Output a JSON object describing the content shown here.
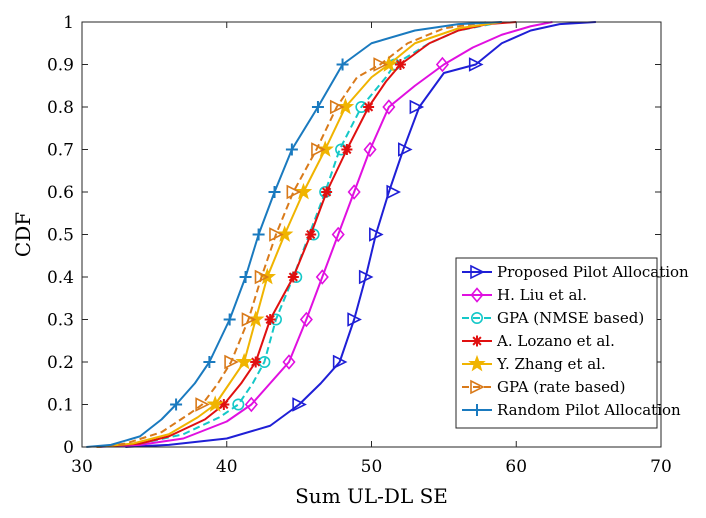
{
  "chart_data": {
    "type": "line",
    "title": "",
    "xlabel": "Sum UL-DL SE",
    "ylabel": "CDF",
    "xlim": [
      30,
      70
    ],
    "ylim": [
      0,
      1
    ],
    "xticks": [
      30,
      40,
      50,
      60,
      70
    ],
    "yticks": [
      0,
      0.1,
      0.2,
      0.3,
      0.4,
      0.5,
      0.6,
      0.7,
      0.8,
      0.9,
      1
    ],
    "xtick_labels": [
      "30",
      "40",
      "50",
      "60",
      "70"
    ],
    "ytick_labels": [
      "0",
      "0.1",
      "0.2",
      "0.3",
      "0.4",
      "0.5",
      "0.6",
      "0.7",
      "0.8",
      "0.9",
      "1"
    ],
    "grid": false,
    "legend_position": "bottom-right",
    "series": [
      {
        "name": "Proposed Pilot Allocation",
        "color": "#1f1fd6",
        "line_style": "solid",
        "marker": "triangle-right",
        "curve": [
          [
            33,
            0
          ],
          [
            36,
            0.005
          ],
          [
            40,
            0.02
          ],
          [
            43,
            0.05
          ],
          [
            45,
            0.1
          ],
          [
            46.5,
            0.15
          ],
          [
            47.8,
            0.2
          ],
          [
            48.8,
            0.3
          ],
          [
            49.6,
            0.4
          ],
          [
            50.3,
            0.5
          ],
          [
            51.2,
            0.6
          ],
          [
            52.2,
            0.7
          ],
          [
            53.3,
            0.8
          ],
          [
            55,
            0.88
          ],
          [
            57.2,
            0.9
          ],
          [
            59,
            0.95
          ],
          [
            61,
            0.98
          ],
          [
            63,
            0.995
          ],
          [
            65.5,
            1
          ]
        ],
        "markers": [
          [
            45,
            0.1
          ],
          [
            47.8,
            0.2
          ],
          [
            48.8,
            0.3
          ],
          [
            49.6,
            0.4
          ],
          [
            50.3,
            0.5
          ],
          [
            51.5,
            0.6
          ],
          [
            52.3,
            0.7
          ],
          [
            53.1,
            0.8
          ],
          [
            57.2,
            0.9
          ]
        ]
      },
      {
        "name": "H. Liu et al.",
        "color": "#e010e0",
        "line_style": "solid",
        "marker": "diamond",
        "curve": [
          [
            31,
            0
          ],
          [
            34,
            0.005
          ],
          [
            37,
            0.02
          ],
          [
            40,
            0.06
          ],
          [
            41.7,
            0.1
          ],
          [
            43,
            0.15
          ],
          [
            44.3,
            0.2
          ],
          [
            45.5,
            0.3
          ],
          [
            46.6,
            0.4
          ],
          [
            47.7,
            0.5
          ],
          [
            48.8,
            0.6
          ],
          [
            49.9,
            0.7
          ],
          [
            51.2,
            0.8
          ],
          [
            53,
            0.85
          ],
          [
            55,
            0.9
          ],
          [
            57,
            0.94
          ],
          [
            59,
            0.97
          ],
          [
            61,
            0.99
          ],
          [
            62.5,
            1
          ]
        ],
        "markers": [
          [
            41.7,
            0.1
          ],
          [
            44.3,
            0.2
          ],
          [
            45.5,
            0.3
          ],
          [
            46.6,
            0.4
          ],
          [
            47.7,
            0.5
          ],
          [
            48.8,
            0.6
          ],
          [
            49.9,
            0.7
          ],
          [
            51.2,
            0.8
          ],
          [
            54.9,
            0.9
          ]
        ]
      },
      {
        "name": "GPA (NMSE based)",
        "color": "#14c8c8",
        "line_style": "dashed",
        "marker": "circle",
        "curve": [
          [
            31,
            0
          ],
          [
            34,
            0.008
          ],
          [
            37,
            0.03
          ],
          [
            39.5,
            0.07
          ],
          [
            40.8,
            0.1
          ],
          [
            41.8,
            0.15
          ],
          [
            42.6,
            0.2
          ],
          [
            43.4,
            0.3
          ],
          [
            44.6,
            0.4
          ],
          [
            45.7,
            0.5
          ],
          [
            46.8,
            0.6
          ],
          [
            47.8,
            0.7
          ],
          [
            49.3,
            0.8
          ],
          [
            51,
            0.87
          ],
          [
            51.6,
            0.9
          ],
          [
            54,
            0.95
          ],
          [
            56,
            0.98
          ],
          [
            59,
            1
          ]
        ],
        "markers": [
          [
            40.8,
            0.1
          ],
          [
            42.6,
            0.2
          ],
          [
            43.4,
            0.3
          ],
          [
            44.8,
            0.4
          ],
          [
            46,
            0.5
          ],
          [
            46.8,
            0.6
          ],
          [
            47.9,
            0.7
          ],
          [
            49.3,
            0.8
          ],
          [
            51.6,
            0.9
          ]
        ]
      },
      {
        "name": "A. Lozano et al.",
        "color": "#e01010",
        "line_style": "solid",
        "marker": "asterisk",
        "curve": [
          [
            31,
            0
          ],
          [
            34,
            0.008
          ],
          [
            36,
            0.025
          ],
          [
            38.5,
            0.065
          ],
          [
            39.8,
            0.1
          ],
          [
            41,
            0.15
          ],
          [
            42,
            0.2
          ],
          [
            43,
            0.3
          ],
          [
            44.6,
            0.4
          ],
          [
            45.8,
            0.5
          ],
          [
            46.9,
            0.6
          ],
          [
            48.3,
            0.7
          ],
          [
            49.8,
            0.8
          ],
          [
            51,
            0.86
          ],
          [
            52,
            0.9
          ],
          [
            54,
            0.95
          ],
          [
            56,
            0.98
          ],
          [
            58,
            0.995
          ],
          [
            60,
            1
          ]
        ],
        "markers": [
          [
            39.8,
            0.1
          ],
          [
            42,
            0.2
          ],
          [
            43,
            0.3
          ],
          [
            44.6,
            0.4
          ],
          [
            45.8,
            0.5
          ],
          [
            46.9,
            0.6
          ],
          [
            48.3,
            0.7
          ],
          [
            49.8,
            0.8
          ],
          [
            52,
            0.9
          ]
        ]
      },
      {
        "name": "Y. Zhang et al.",
        "color": "#f0b400",
        "line_style": "solid",
        "marker": "star",
        "curve": [
          [
            31,
            0
          ],
          [
            33.5,
            0.008
          ],
          [
            36,
            0.03
          ],
          [
            38,
            0.07
          ],
          [
            39.2,
            0.1
          ],
          [
            40.2,
            0.15
          ],
          [
            41.2,
            0.2
          ],
          [
            42,
            0.3
          ],
          [
            42.8,
            0.4
          ],
          [
            44,
            0.5
          ],
          [
            45.3,
            0.6
          ],
          [
            46.8,
            0.7
          ],
          [
            48.2,
            0.8
          ],
          [
            50,
            0.87
          ],
          [
            51.2,
            0.9
          ],
          [
            53,
            0.95
          ],
          [
            56,
            0.985
          ],
          [
            59,
            1
          ]
        ],
        "markers": [
          [
            39.2,
            0.1
          ],
          [
            41.2,
            0.2
          ],
          [
            42,
            0.3
          ],
          [
            42.8,
            0.4
          ],
          [
            44,
            0.5
          ],
          [
            45.3,
            0.6
          ],
          [
            46.8,
            0.7
          ],
          [
            48.2,
            0.8
          ],
          [
            51.2,
            0.9
          ]
        ]
      },
      {
        "name": "GPA (rate based)",
        "color": "#d97a1a",
        "line_style": "dashed",
        "marker": "triangle-right",
        "curve": [
          [
            31,
            0
          ],
          [
            33,
            0.008
          ],
          [
            35.5,
            0.035
          ],
          [
            37.5,
            0.08
          ],
          [
            38.3,
            0.1
          ],
          [
            39.4,
            0.15
          ],
          [
            40.3,
            0.2
          ],
          [
            41.5,
            0.3
          ],
          [
            42.4,
            0.4
          ],
          [
            43.4,
            0.5
          ],
          [
            44.6,
            0.6
          ],
          [
            46.2,
            0.7
          ],
          [
            47.6,
            0.8
          ],
          [
            49,
            0.87
          ],
          [
            50.6,
            0.9
          ],
          [
            52.5,
            0.95
          ],
          [
            55,
            0.985
          ],
          [
            58,
            1
          ]
        ],
        "markers": [
          [
            38.3,
            0.1
          ],
          [
            40.3,
            0.2
          ],
          [
            41.5,
            0.3
          ],
          [
            42.4,
            0.4
          ],
          [
            43.4,
            0.5
          ],
          [
            44.6,
            0.6
          ],
          [
            46.3,
            0.7
          ],
          [
            47.6,
            0.8
          ],
          [
            50.6,
            0.9
          ]
        ]
      },
      {
        "name": "Random Pilot Allocation",
        "color": "#1a7abf",
        "line_style": "solid",
        "marker": "plus",
        "curve": [
          [
            30.3,
            0
          ],
          [
            32,
            0.005
          ],
          [
            34,
            0.025
          ],
          [
            35.5,
            0.065
          ],
          [
            36.5,
            0.1
          ],
          [
            37.8,
            0.15
          ],
          [
            38.8,
            0.2
          ],
          [
            40.2,
            0.3
          ],
          [
            41.3,
            0.4
          ],
          [
            42.2,
            0.5
          ],
          [
            43.3,
            0.6
          ],
          [
            44.5,
            0.7
          ],
          [
            46.3,
            0.8
          ],
          [
            48,
            0.9
          ],
          [
            50,
            0.95
          ],
          [
            53,
            0.98
          ],
          [
            56,
            0.995
          ],
          [
            59,
            1
          ]
        ],
        "markers": [
          [
            36.5,
            0.1
          ],
          [
            38.8,
            0.2
          ],
          [
            40.2,
            0.3
          ],
          [
            41.3,
            0.4
          ],
          [
            42.2,
            0.5
          ],
          [
            43.3,
            0.6
          ],
          [
            44.5,
            0.7
          ],
          [
            46.3,
            0.8
          ],
          [
            48,
            0.9
          ]
        ]
      }
    ]
  }
}
